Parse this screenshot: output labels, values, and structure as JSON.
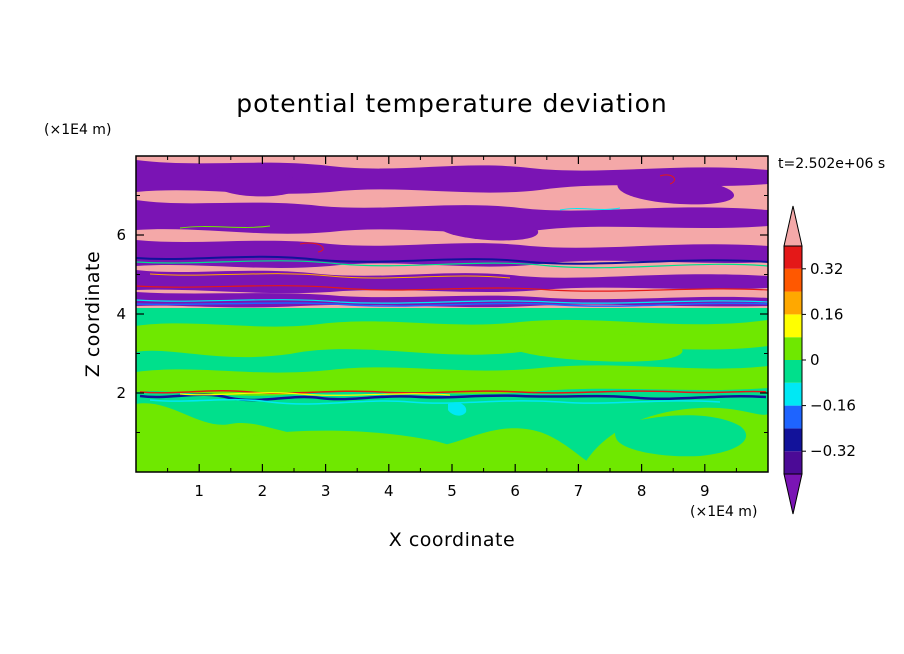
{
  "chart_data": {
    "type": "heatmap",
    "title": "potential temperature deviation",
    "xlabel": "X coordinate",
    "ylabel": "Z coordinate",
    "x_unit": "(×1E4 m)",
    "y_unit": "(×1E4 m)",
    "time_label": "t=2.502e+06 s",
    "xlim": [
      0,
      10
    ],
    "ylim": [
      0,
      8
    ],
    "x_ticks": [
      "1",
      "2",
      "3",
      "4",
      "5",
      "6",
      "7",
      "8",
      "9"
    ],
    "x_tick_values": [
      1,
      2,
      3,
      4,
      5,
      6,
      7,
      8,
      9
    ],
    "y_ticks": [
      "2",
      "4",
      "6"
    ],
    "y_tick_values": [
      2,
      4,
      6
    ],
    "colorbar": {
      "levels": [
        -0.4,
        -0.32,
        -0.24,
        -0.16,
        -0.08,
        0,
        0.08,
        0.16,
        0.24,
        0.32,
        0.4
      ],
      "labels": [
        "0.32",
        "0.16",
        "0",
        "−0.16",
        "−0.32"
      ],
      "label_values": [
        0.32,
        0.16,
        0,
        -0.16,
        -0.32
      ],
      "colors": [
        "#4b0a96",
        "#12129a",
        "#1e64ff",
        "#00e8f4",
        "#00e08c",
        "#6fe800",
        "#ffff00",
        "#ffa800",
        "#ff5800",
        "#e41818"
      ],
      "over_color": "#f4a8a8",
      "under_color": "#7a14b4",
      "extend": "both"
    }
  }
}
